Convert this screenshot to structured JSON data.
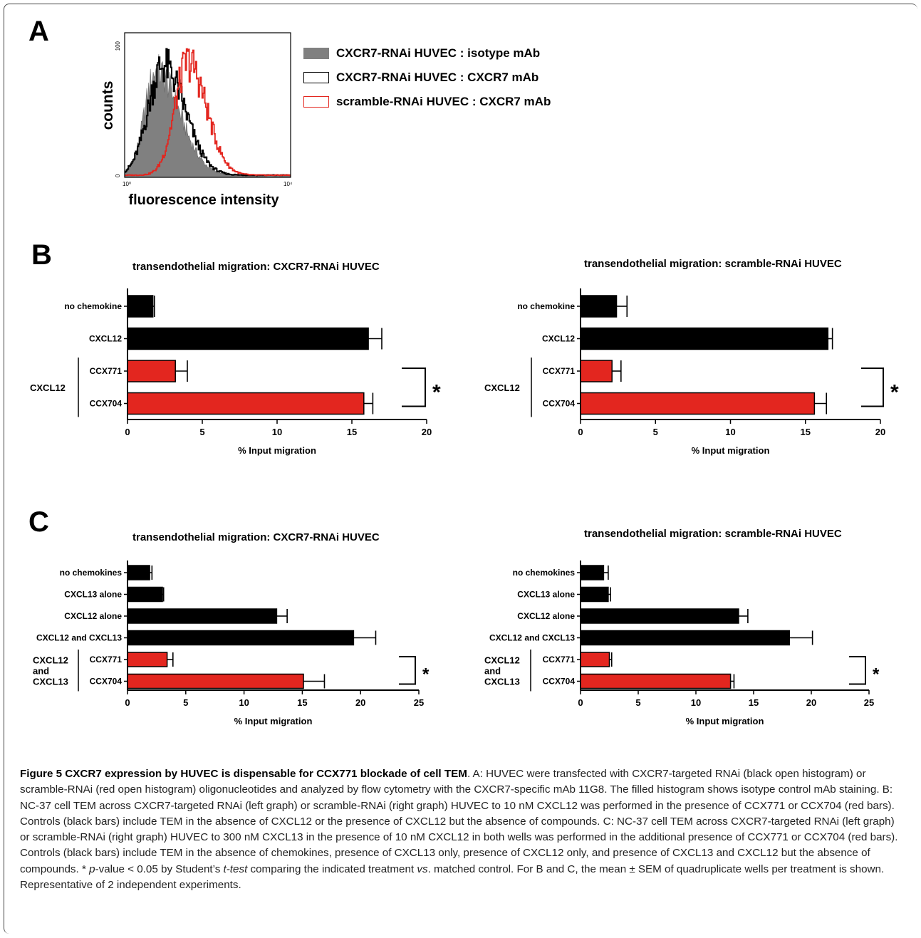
{
  "panels": {
    "a": "A",
    "b": "B",
    "c": "C"
  },
  "histogram": {
    "ylabel": "counts",
    "xlabel": "fluorescence intensity",
    "ytick_top": "100",
    "ytick_bottom": "0",
    "xtick_left": "10⁰",
    "xtick_right": "10⁴",
    "colors": {
      "isotype": "#808080",
      "cxcr7_rnai": "#000000",
      "scramble": "#e3261f"
    }
  },
  "legend": {
    "items": [
      {
        "label": "CXCR7-RNAi HUVEC : isotype mAb",
        "swatch": "filled-gray"
      },
      {
        "label": "CXCR7-RNAi HUVEC : CXCR7 mAb",
        "swatch": "open-black"
      },
      {
        "label": "scramble-RNAi HUVEC : CXCR7 mAb",
        "swatch": "open-red"
      }
    ]
  },
  "chart_data": [
    {
      "panel": "B-left",
      "type": "bar",
      "orientation": "horizontal",
      "title": "transendothelial migration: CXCR7-RNAi HUVEC",
      "xlabel": "% Input migration",
      "xlim": [
        0,
        20
      ],
      "xticks": [
        "0",
        "5",
        "10",
        "15",
        "20"
      ],
      "group_label": "CXCL12",
      "significance": "*",
      "categories": [
        "no chemokine",
        "CXCL12",
        "CCX771",
        "CCX704"
      ],
      "values": [
        1.7,
        16.1,
        3.2,
        15.8
      ],
      "errors": [
        0.1,
        0.9,
        0.8,
        0.6
      ],
      "bar_colors": [
        "#000000",
        "#000000",
        "#e3261f",
        "#e3261f"
      ]
    },
    {
      "panel": "B-right",
      "type": "bar",
      "orientation": "horizontal",
      "title": "transendothelial migration: scramble-RNAi HUVEC",
      "xlabel": "% Input migration",
      "xlim": [
        0,
        20
      ],
      "xticks": [
        "0",
        "5",
        "10",
        "15",
        "20"
      ],
      "group_label": "CXCL12",
      "significance": "*",
      "categories": [
        "no chemokine",
        "CXCL12",
        "CCX771",
        "CCX704"
      ],
      "values": [
        2.4,
        16.5,
        2.1,
        15.6
      ],
      "errors": [
        0.7,
        0.3,
        0.6,
        0.8
      ],
      "bar_colors": [
        "#000000",
        "#000000",
        "#e3261f",
        "#e3261f"
      ]
    },
    {
      "panel": "C-left",
      "type": "bar",
      "orientation": "horizontal",
      "title": "transendothelial migration: CXCR7-RNAi HUVEC",
      "xlabel": "% Input migration",
      "xlim": [
        0,
        25
      ],
      "xticks": [
        "0",
        "5",
        "10",
        "15",
        "20",
        "25"
      ],
      "group_label": "CXCL12\nand\nCXCL13",
      "significance": "*",
      "categories": [
        "no chemokines",
        "CXCL13 alone",
        "CXCL12 alone",
        "CXCL12 and CXCL13",
        "CCX771",
        "CCX704"
      ],
      "values": [
        1.9,
        3.0,
        12.8,
        19.4,
        3.4,
        15.1
      ],
      "errors": [
        0.2,
        0.1,
        0.9,
        1.9,
        0.5,
        1.8
      ],
      "bar_colors": [
        "#000000",
        "#000000",
        "#000000",
        "#000000",
        "#e3261f",
        "#e3261f"
      ]
    },
    {
      "panel": "C-right",
      "type": "bar",
      "orientation": "horizontal",
      "title": "transendothelial migration: scramble-RNAi HUVEC",
      "xlabel": "% Input migration",
      "xlim": [
        0,
        25
      ],
      "xticks": [
        "0",
        "5",
        "10",
        "15",
        "20",
        "25"
      ],
      "group_label": "CXCL12\nand\nCXCL13",
      "significance": "*",
      "categories": [
        "no chemokines",
        "CXCL13 alone",
        "CXCL12 alone",
        "CXCL12 and CXCL13",
        "CCX771",
        "CCX704"
      ],
      "values": [
        2.0,
        2.4,
        13.7,
        18.1,
        2.5,
        13.0
      ],
      "errors": [
        0.4,
        0.2,
        0.8,
        2.0,
        0.2,
        0.3
      ],
      "bar_colors": [
        "#000000",
        "#000000",
        "#000000",
        "#000000",
        "#e3261f",
        "#e3261f"
      ]
    }
  ],
  "caption": {
    "title": "Figure 5 CXCR7 expression by HUVEC is dispensable for CCX771 blockade of cell TEM",
    "part1": ". A: HUVEC were transfected with CXCR7-targeted RNAi (black open histogram) or scramble-RNAi (red open histogram) oligonucleotides and analyzed by flow cytometry with the CXCR7-specific mAb 11G8. The filled histogram shows isotype control mAb staining. B: NC-37 cell TEM across CXCR7-targeted RNAi (left graph) or scramble-RNAi (right graph) HUVEC to 10 nM CXCL12 was performed in the presence of CCX771 or CCX704 (red bars). Controls (black bars) include TEM in the absence of CXCL12 or the presence of CXCL12 but the absence of compounds. C: NC-37 cell TEM across CXCR7-targeted RNAi (left graph) or scramble-RNAi (right graph) HUVEC to 300 nM CXCL13 in the presence of 10 nM CXCL12 in both wells was performed in the additional presence of CCX771 or CCX704 (red bars). Controls (black bars) include TEM in the absence of chemokines, presence of CXCL13 only, presence of CXCL12 only, and presence of CXCL13 and CXCL12 but the absence of compounds. * ",
    "pvalue": "p",
    "part2": "-value < 0.05 by Student’s ",
    "ttest": "t-test",
    "part3": " comparing the indicated treatment ",
    "vs": "vs",
    "part4": ". matched control. For B and C, the mean ± SEM of quadruplicate wells per treatment is shown. Representative of 2 independent experiments."
  }
}
